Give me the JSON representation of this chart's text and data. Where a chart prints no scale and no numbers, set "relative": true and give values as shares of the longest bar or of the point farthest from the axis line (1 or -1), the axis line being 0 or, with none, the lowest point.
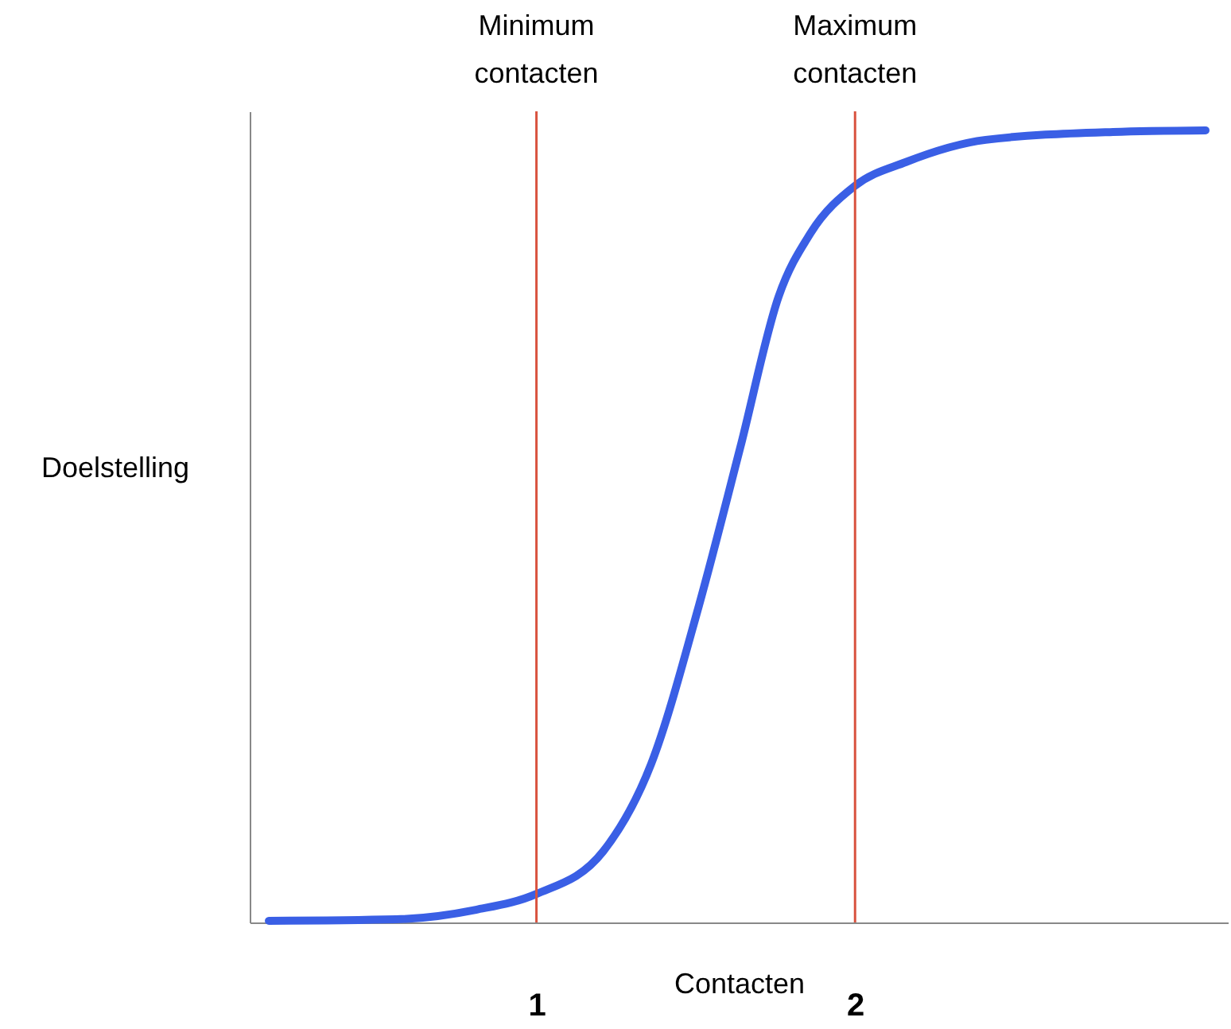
{
  "chart_data": {
    "type": "line",
    "xlabel": "Contacten",
    "ylabel": "Doelstelling",
    "relative": true,
    "xlim": [
      0.1,
      3.17
    ],
    "xticks": [
      1,
      2
    ],
    "grid": false,
    "legend": false,
    "marker": "none",
    "line_style": "solid",
    "series": [
      {
        "color": "#3a5fe5",
        "x": [
          0.16,
          0.56,
          0.81,
          1.0,
          1.21,
          1.36,
          1.51,
          1.64,
          1.76,
          1.86,
          2.0,
          2.16,
          2.41,
          2.81,
          3.1
        ],
        "values": [
          0.002,
          0.004,
          0.016,
          0.036,
          0.09,
          0.2,
          0.4,
          0.6,
          0.79,
          0.87,
          0.93,
          0.96,
          0.988,
          0.998,
          1
        ]
      }
    ],
    "ref_lines": [
      {
        "axis": "x",
        "value": 1,
        "label": "Minimum contacten",
        "color": "#d9533f"
      },
      {
        "axis": "x",
        "value": 2,
        "label": "Maximum contacten",
        "color": "#d9533f"
      }
    ]
  }
}
